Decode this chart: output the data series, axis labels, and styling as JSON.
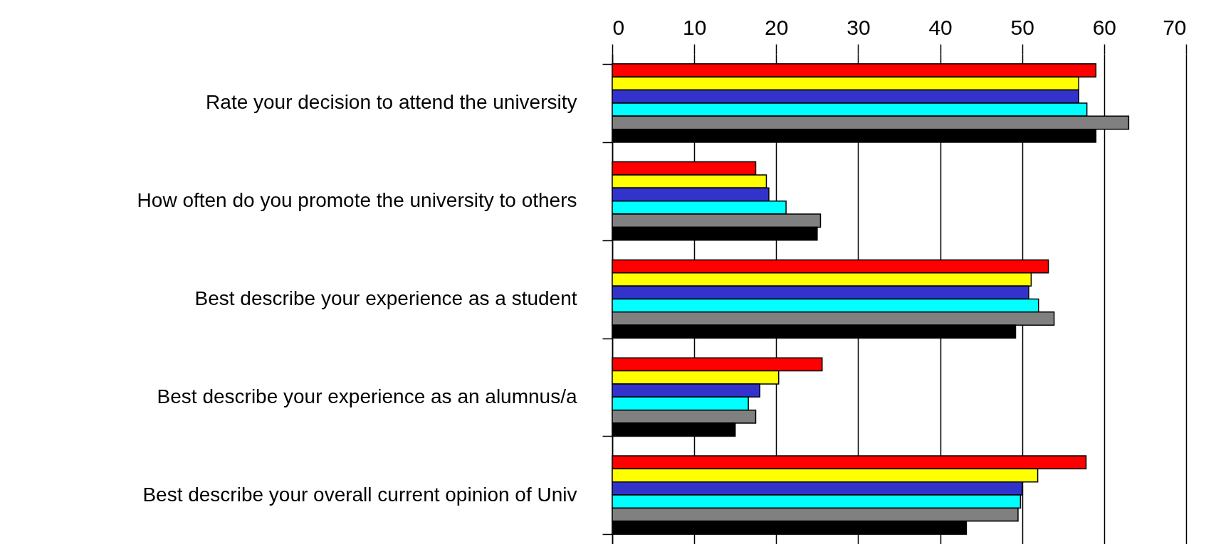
{
  "chart_data": {
    "type": "bar",
    "orientation": "horizontal",
    "categories": [
      "Rate your decision to attend the university",
      "How often do you promote the university to others",
      "Best describe your experience as a student",
      "Best describe your experience as an alumnus/a",
      "Best describe your overall current opinion of Univ"
    ],
    "series": [
      {
        "color": "#ff0000",
        "values": [
          59,
          17.5,
          53.2,
          25.6,
          57.8
        ]
      },
      {
        "color": "#ffff00",
        "values": [
          56.9,
          18.8,
          51.1,
          20.3,
          51.9
        ]
      },
      {
        "color": "#3333cc",
        "values": [
          56.9,
          19.1,
          50.8,
          18,
          50
        ]
      },
      {
        "color": "#00ffff",
        "values": [
          57.9,
          21.2,
          52,
          16.6,
          49.8
        ]
      },
      {
        "color": "#808080",
        "values": [
          63,
          25.4,
          53.9,
          17.5,
          49.5
        ]
      },
      {
        "color": "#000000",
        "values": [
          59,
          25,
          49.2,
          15,
          43.2
        ]
      }
    ],
    "xlim": [
      0,
      70
    ],
    "xticks": [
      0,
      10,
      20,
      30,
      40,
      50,
      60,
      70
    ],
    "grid": "x",
    "legend": false
  }
}
